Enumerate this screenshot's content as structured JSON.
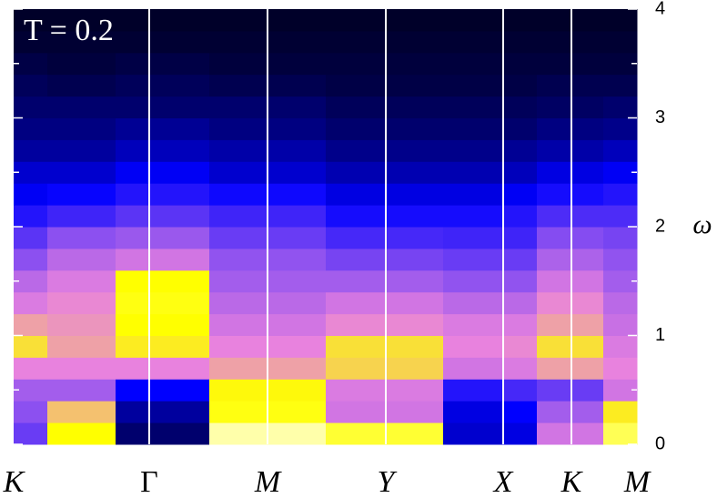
{
  "chart_data": {
    "type": "heatmap",
    "annotation": "T = 0.2",
    "ylabel": "ω",
    "xlim": [
      0,
      6.85
    ],
    "ylim": [
      0,
      4
    ],
    "xticks": [
      {
        "value": 0,
        "label": "K"
      },
      {
        "value": 1.49,
        "label": "Γ"
      },
      {
        "value": 2.79,
        "label": "M"
      },
      {
        "value": 4.09,
        "label": "Y"
      },
      {
        "value": 5.38,
        "label": "X"
      },
      {
        "value": 6.13,
        "label": "K"
      },
      {
        "value": 6.85,
        "label": "M"
      }
    ],
    "yticks": [
      0,
      1,
      2,
      3,
      4
    ],
    "yminorticks": [
      0.5,
      1.5,
      2.5,
      3.5
    ],
    "x_edges": [
      0,
      0.37,
      1.12,
      2.15,
      3.43,
      4.72,
      5.37,
      5.75,
      6.48,
      6.85
    ],
    "y_edges": [
      0,
      0.2,
      0.4,
      0.6,
      0.8,
      1.0,
      1.2,
      1.4,
      1.6,
      1.8,
      2.0,
      2.2,
      2.4,
      2.6,
      2.8,
      3.0,
      3.2,
      3.4,
      3.6,
      3.8,
      4.0
    ],
    "z": [
      [
        0.4,
        0.45,
        0.5,
        0.65,
        0.8,
        0.7,
        0.62,
        0.55,
        0.45,
        0.38,
        0.3,
        0.24,
        0.2,
        0.15,
        0.12,
        0.1,
        0.08,
        0.06,
        0.04,
        0.03
      ],
      [
        0.85,
        0.75,
        0.5,
        0.65,
        0.7,
        0.68,
        0.66,
        0.62,
        0.55,
        0.45,
        0.34,
        0.26,
        0.2,
        0.15,
        0.12,
        0.1,
        0.07,
        0.05,
        0.04,
        0.03
      ],
      [
        0.1,
        0.15,
        0.25,
        0.65,
        0.82,
        0.85,
        0.86,
        0.85,
        0.6,
        0.48,
        0.38,
        0.3,
        0.24,
        0.18,
        0.14,
        0.1,
        0.08,
        0.06,
        0.04,
        0.03
      ],
      [
        0.95,
        0.86,
        0.84,
        0.7,
        0.65,
        0.6,
        0.55,
        0.5,
        0.46,
        0.4,
        0.34,
        0.27,
        0.2,
        0.16,
        0.12,
        0.1,
        0.07,
        0.05,
        0.04,
        0.03
      ],
      [
        0.88,
        0.6,
        0.62,
        0.78,
        0.8,
        0.66,
        0.6,
        0.5,
        0.42,
        0.35,
        0.28,
        0.22,
        0.17,
        0.13,
        0.1,
        0.08,
        0.06,
        0.05,
        0.04,
        0.03
      ],
      [
        0.2,
        0.22,
        0.3,
        0.6,
        0.65,
        0.62,
        0.55,
        0.46,
        0.4,
        0.34,
        0.28,
        0.22,
        0.17,
        0.13,
        0.1,
        0.08,
        0.06,
        0.05,
        0.04,
        0.03
      ],
      [
        0.22,
        0.25,
        0.35,
        0.62,
        0.66,
        0.62,
        0.55,
        0.46,
        0.4,
        0.34,
        0.3,
        0.24,
        0.18,
        0.14,
        0.1,
        0.08,
        0.06,
        0.05,
        0.04,
        0.03
      ],
      [
        0.6,
        0.5,
        0.4,
        0.7,
        0.8,
        0.7,
        0.66,
        0.6,
        0.52,
        0.44,
        0.36,
        0.28,
        0.22,
        0.16,
        0.12,
        0.09,
        0.07,
        0.05,
        0.04,
        0.03
      ],
      [
        0.9,
        0.82,
        0.6,
        0.65,
        0.62,
        0.58,
        0.55,
        0.5,
        0.46,
        0.42,
        0.36,
        0.3,
        0.24,
        0.18,
        0.13,
        0.1,
        0.07,
        0.05,
        0.04,
        0.03
      ]
    ]
  }
}
